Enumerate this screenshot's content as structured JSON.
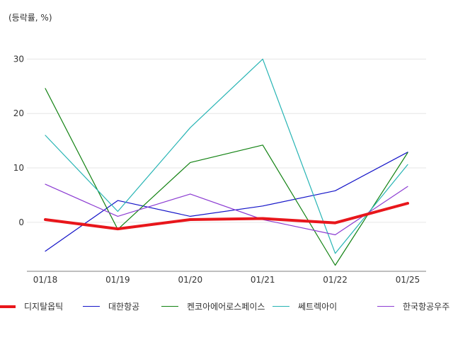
{
  "unit_label": "(등락률, %)",
  "chart_data": {
    "type": "line",
    "ylabel": "(등락률, %)",
    "categories": [
      "01/18",
      "01/19",
      "01/20",
      "01/21",
      "01/22",
      "01/25"
    ],
    "ylim": [
      -9,
      35
    ],
    "yticks": [
      0,
      10,
      20,
      30
    ],
    "grid": true,
    "legend_position": "bottom",
    "series": [
      {
        "name": "디지탈옵틱",
        "color": "#e8161b",
        "width": 4,
        "values": [
          0.5,
          -1.2,
          0.5,
          0.7,
          -0.1,
          3.5
        ]
      },
      {
        "name": "대한항공",
        "color": "#1414c8",
        "width": 1.2,
        "values": [
          -5.3,
          4.0,
          1.1,
          3.0,
          5.8,
          12.9
        ]
      },
      {
        "name": "켄코아에어로스페이스",
        "color": "#128212",
        "width": 1.2,
        "values": [
          24.6,
          -1.3,
          11.0,
          14.2,
          -7.9,
          12.8
        ]
      },
      {
        "name": "쎄트렉아이",
        "color": "#26b4b4",
        "width": 1.2,
        "values": [
          16.0,
          2.0,
          17.4,
          30.0,
          -5.7,
          10.6
        ]
      },
      {
        "name": "한국항공우주",
        "color": "#8c3cd2",
        "width": 1.2,
        "values": [
          7.0,
          1.1,
          5.2,
          0.5,
          -2.3,
          6.6
        ]
      }
    ]
  }
}
